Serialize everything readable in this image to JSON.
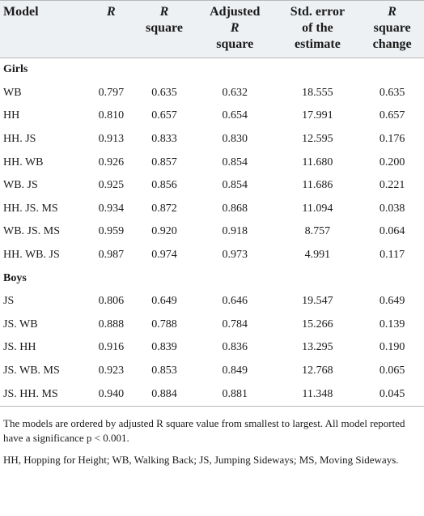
{
  "table": {
    "header": [
      [
        "Model"
      ],
      [
        "R"
      ],
      [
        "R",
        "square"
      ],
      [
        "Adjusted",
        "R",
        "square"
      ],
      [
        "Std. error",
        "of the",
        "estimate"
      ],
      [
        "R",
        "square",
        "change"
      ]
    ],
    "groups": [
      {
        "label": "Girls",
        "rows": [
          [
            "WB",
            "0.797",
            "0.635",
            "0.632",
            "18.555",
            "0.635"
          ],
          [
            "HH",
            "0.810",
            "0.657",
            "0.654",
            "17.991",
            "0.657"
          ],
          [
            "HH. JS",
            "0.913",
            "0.833",
            "0.830",
            "12.595",
            "0.176"
          ],
          [
            "HH. WB",
            "0.926",
            "0.857",
            "0.854",
            "11.680",
            "0.200"
          ],
          [
            "WB. JS",
            "0.925",
            "0.856",
            "0.854",
            "11.686",
            "0.221"
          ],
          [
            "HH. JS. MS",
            "0.934",
            "0.872",
            "0.868",
            "11.094",
            "0.038"
          ],
          [
            "WB. JS. MS",
            "0.959",
            "0.920",
            "0.918",
            "8.757",
            "0.064"
          ],
          [
            "HH. WB. JS",
            "0.987",
            "0.974",
            "0.973",
            "4.991",
            "0.117"
          ]
        ]
      },
      {
        "label": "Boys",
        "rows": [
          [
            "JS",
            "0.806",
            "0.649",
            "0.646",
            "19.547",
            "0.649"
          ],
          [
            "JS. WB",
            "0.888",
            "0.788",
            "0.784",
            "15.266",
            "0.139"
          ],
          [
            "JS. HH",
            "0.916",
            "0.839",
            "0.836",
            "13.295",
            "0.190"
          ],
          [
            "JS. WB. MS",
            "0.923",
            "0.853",
            "0.849",
            "12.768",
            "0.065"
          ],
          [
            "JS. HH. MS",
            "0.940",
            "0.884",
            "0.881",
            "11.348",
            "0.045"
          ]
        ]
      }
    ],
    "notes": [
      "The models are ordered by adjusted R square value from smallest to largest. All model reported have a significance p < 0.001.",
      "HH, Hopping for Height; WB, Walking Back; JS, Jumping Sideways; MS, Moving Sideways."
    ]
  }
}
